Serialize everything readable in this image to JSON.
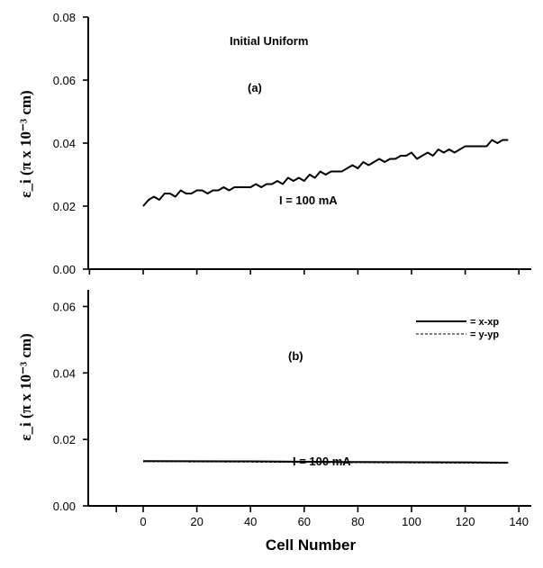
{
  "chart_data": [
    {
      "panel": "a",
      "type": "line",
      "ylabel": "ε_i (π x 10⁻³ cm)",
      "ylim": [
        0,
        0.08
      ],
      "yticks": [
        "0.00",
        "0.02",
        "0.04",
        "0.06",
        "0.08"
      ],
      "xlim": [
        0,
        140
      ],
      "annotations": [
        "Initial Uniform",
        "(a)",
        "I = 100 mA"
      ],
      "series": [
        {
          "x": [
            0,
            2,
            4,
            6,
            8,
            10,
            12,
            14,
            16,
            18,
            20,
            22,
            24,
            26,
            28,
            30,
            32,
            34,
            36,
            38,
            40,
            42,
            44,
            46,
            48,
            50,
            52,
            54,
            56,
            58,
            60,
            62,
            64,
            66,
            68,
            70,
            72,
            74,
            76,
            78,
            80,
            82,
            84,
            86,
            88,
            90,
            92,
            94,
            96,
            98,
            100,
            102,
            104,
            106,
            108,
            110,
            112,
            114,
            116,
            118,
            120,
            122,
            124,
            126,
            128,
            130,
            132,
            134,
            136
          ],
          "values": [
            0.02,
            0.022,
            0.023,
            0.022,
            0.024,
            0.024,
            0.023,
            0.025,
            0.024,
            0.024,
            0.025,
            0.025,
            0.024,
            0.025,
            0.025,
            0.026,
            0.025,
            0.026,
            0.026,
            0.026,
            0.026,
            0.027,
            0.026,
            0.027,
            0.027,
            0.028,
            0.027,
            0.029,
            0.028,
            0.029,
            0.028,
            0.03,
            0.029,
            0.031,
            0.03,
            0.031,
            0.031,
            0.031,
            0.032,
            0.033,
            0.032,
            0.034,
            0.033,
            0.034,
            0.035,
            0.034,
            0.035,
            0.035,
            0.036,
            0.036,
            0.037,
            0.035,
            0.036,
            0.037,
            0.036,
            0.038,
            0.037,
            0.038,
            0.037,
            0.038,
            0.039,
            0.039,
            0.039,
            0.039,
            0.039,
            0.041,
            0.04,
            0.041,
            0.041
          ]
        }
      ]
    },
    {
      "panel": "b",
      "type": "line",
      "ylabel": "ε_i (π x 10⁻³ cm)",
      "ylim": [
        0,
        0.065
      ],
      "yticks": [
        "0.00",
        "0.02",
        "0.04",
        "0.06"
      ],
      "xlim": [
        -15,
        140
      ],
      "xticks": [
        "0",
        "20",
        "40",
        "60",
        "80",
        "100",
        "120",
        "140"
      ],
      "xlabel": "Cell Number",
      "annotations": [
        "(b)",
        "I = 100 mA"
      ],
      "legend": [
        "= x-xp",
        "= y-yp"
      ],
      "legend_position": "top-right",
      "series": [
        {
          "name": "= x-xp",
          "x": [
            0,
            40,
            80,
            120,
            136
          ],
          "values": [
            0.0135,
            0.0134,
            0.0132,
            0.0131,
            0.013
          ]
        },
        {
          "name": "= y-yp",
          "x": [
            0,
            40,
            80,
            120,
            136
          ],
          "values": [
            0.0133,
            0.0132,
            0.013,
            0.0129,
            0.0128
          ]
        }
      ]
    }
  ]
}
